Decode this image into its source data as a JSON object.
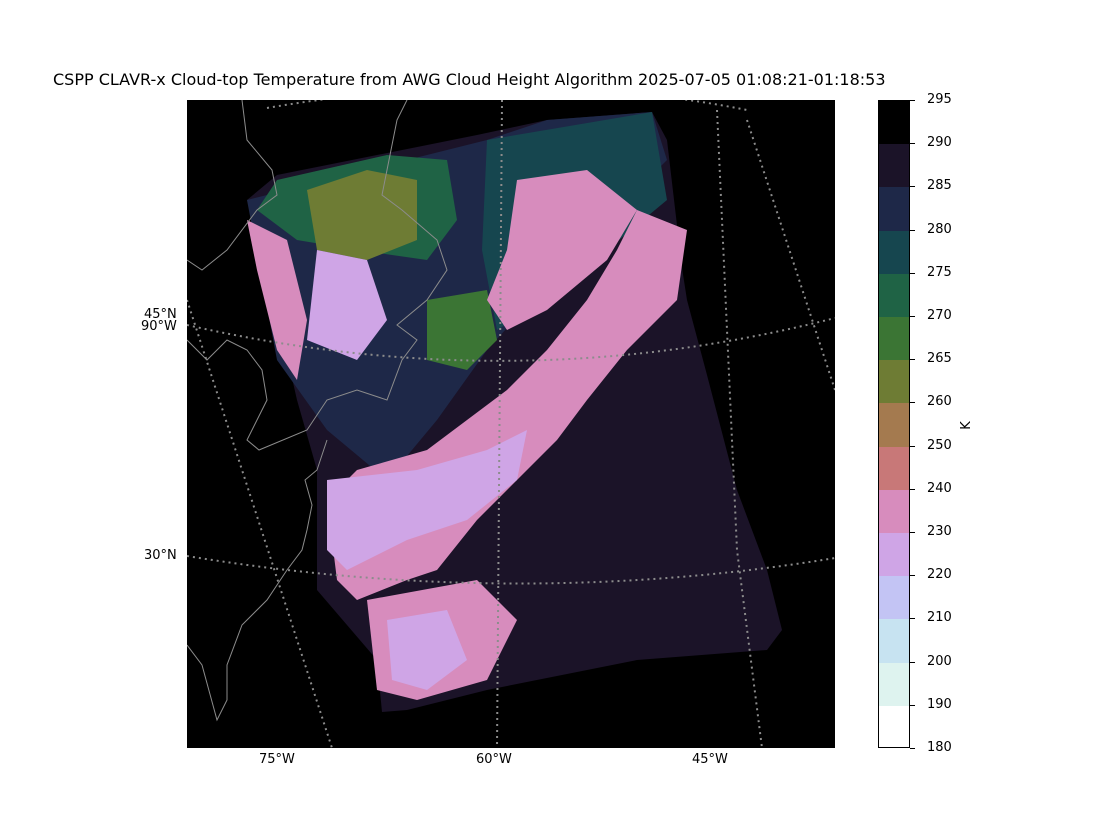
{
  "title": "CSPP CLAVR-x Cloud-top Temperature from AWG Cloud Height Algorithm 2025-07-05 01:08:21-01:18:53",
  "map": {
    "lat_labels": [
      "45°N",
      "30°N"
    ],
    "lon_labels": [
      "90°W",
      "75°W",
      "60°W",
      "45°W"
    ],
    "background": "#000000",
    "coastline_color": "#8c8c8c",
    "gridline_color": "#8c8c8c",
    "projection": "lambert conformal",
    "gridlines": "dotted"
  },
  "colorbar": {
    "unit": "K",
    "ticks": [
      "295",
      "290",
      "285",
      "280",
      "275",
      "270",
      "265",
      "260",
      "250",
      "240",
      "230",
      "220",
      "210",
      "200",
      "190",
      "180"
    ],
    "colors": [
      "#000000",
      "#1b1328",
      "#1e2848",
      "#16464f",
      "#1f6345",
      "#3b7534",
      "#6e7c34",
      "#a47a4f",
      "#c87878",
      "#d78cbd",
      "#cfa5e6",
      "#c3c4f4",
      "#c7e3f1",
      "#def3ef",
      "#ffffff"
    ]
  }
}
